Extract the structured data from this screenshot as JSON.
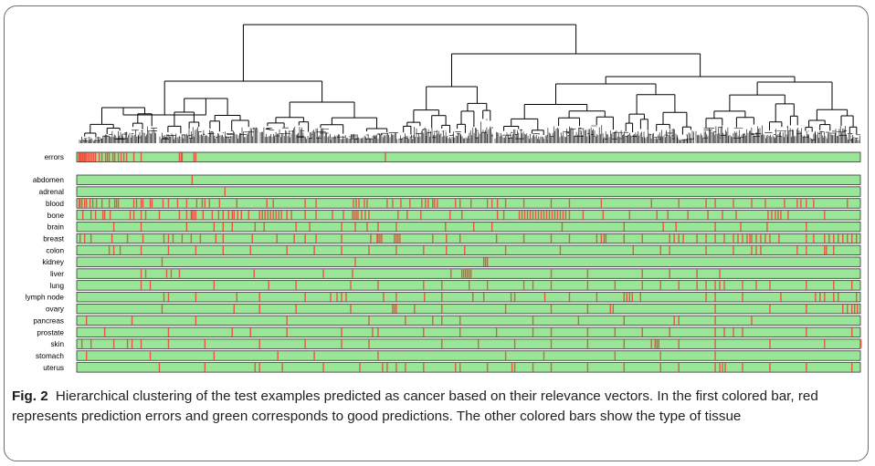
{
  "figure": {
    "rows": [
      {
        "id": "errors",
        "label": "errors",
        "marks": [
          1.5,
          2.5,
          3.5,
          4.5,
          6,
          7.5,
          8.5,
          10,
          12,
          14,
          16,
          18,
          20,
          24,
          27,
          31,
          33,
          35,
          39,
          41,
          45,
          48,
          51,
          54,
          62,
          70,
          112,
          114,
          115,
          128,
          130,
          338
        ]
      },
      {
        "id": "abdomen",
        "label": "abdomen",
        "marks": [
          126
        ]
      },
      {
        "id": "adrenal",
        "label": "adrenal",
        "marks": [
          162
        ]
      },
      {
        "id": "blood",
        "label": "blood",
        "marks": [
          2,
          3,
          5,
          8,
          10,
          14,
          17,
          21,
          27,
          35,
          41,
          43,
          45,
          62,
          65,
          70,
          72,
          80,
          82,
          94,
          100,
          110,
          120,
          131,
          137,
          140,
          145,
          156,
          175,
          208,
          215,
          250,
          262,
          303,
          306,
          309,
          315,
          318,
          340,
          346,
          355,
          365,
          378,
          382,
          385,
          390,
          392,
          395,
          415,
          420,
          432,
          450,
          455,
          461,
          470,
          490,
          520,
          540,
          575,
          630,
          660,
          690,
          700,
          720,
          740,
          755,
          776,
          790,
          794,
          800,
          808,
          845
        ]
      },
      {
        "id": "bone",
        "label": "bone",
        "marks": [
          6,
          15,
          20,
          28,
          30,
          36,
          58,
          62,
          70,
          75,
          90,
          112,
          120,
          125,
          126,
          128,
          130,
          138,
          148,
          155,
          160,
          166,
          170,
          172,
          176,
          180,
          188,
          200,
          203,
          206,
          209,
          212,
          215,
          218,
          221,
          224,
          230,
          235,
          250,
          262,
          280,
          292,
          302,
          304,
          306,
          308,
          312,
          316,
          320,
          352,
          362,
          377,
          409,
          422,
          461,
          468,
          485,
          488,
          491,
          494,
          497,
          500,
          503,
          506,
          509,
          512,
          515,
          518,
          521,
          524,
          527,
          530,
          533,
          536,
          540,
          555,
          577,
          606,
          636,
          648,
          670,
          692,
          708,
          723,
          758,
          762,
          766,
          769,
          772,
          780,
          820
        ]
      },
      {
        "id": "brain",
        "label": "brain",
        "marks": [
          40,
          70,
          120,
          150,
          160,
          170,
          195,
          205,
          240,
          255,
          290,
          305,
          318,
          330,
          350,
          404,
          435,
          455,
          532,
          600,
          643,
          657,
          700,
          728,
          757,
          800
        ]
      },
      {
        "id": "breast",
        "label": "breast",
        "marks": [
          3,
          8,
          15,
          38,
          55,
          72,
          95,
          100,
          105,
          115,
          125,
          135,
          152,
          160,
          192,
          219,
          238,
          250,
          262,
          290,
          322,
          329,
          330,
          332,
          334,
          348,
          350,
          352,
          354,
          390,
          405,
          420,
          460,
          490,
          520,
          540,
          570,
          575,
          578,
          580,
          600,
          620,
          650,
          655,
          660,
          665,
          680,
          690,
          700,
          710,
          720,
          725,
          730,
          735,
          738,
          740,
          745,
          750,
          755,
          760,
          770,
          800,
          808,
          820,
          825,
          830,
          835,
          840,
          845,
          850,
          855
        ]
      },
      {
        "id": "colon",
        "label": "colon",
        "marks": [
          35,
          40,
          47,
          70,
          100,
          130,
          160,
          190,
          230,
          260,
          290,
          320,
          350,
          380,
          405,
          425,
          470,
          530,
          610,
          640,
          650,
          690,
          720,
          740,
          745,
          750,
          790,
          800,
          820,
          822,
          830
        ]
      },
      {
        "id": "kidney",
        "label": "kidney",
        "marks": [
          93,
          305,
          446,
          448,
          450
        ]
      },
      {
        "id": "liver",
        "label": "liver",
        "marks": [
          70,
          75,
          98,
          103,
          112,
          194,
          270,
          302,
          410,
          422,
          424,
          426,
          428,
          430,
          432,
          520,
          560,
          620,
          650,
          680,
          705
        ]
      },
      {
        "id": "lung",
        "label": "lung",
        "marks": [
          70,
          80,
          150,
          210,
          240,
          300,
          330,
          380,
          400,
          430,
          450,
          490,
          500,
          520,
          560,
          590,
          620,
          640,
          660,
          680,
          690,
          700,
          705,
          710,
          730,
          745,
          760,
          800,
          830,
          850
        ]
      },
      {
        "id": "lymph node",
        "label": "lymph node",
        "marks": [
          95,
          100,
          130,
          175,
          200,
          250,
          278,
          285,
          290,
          295,
          336,
          350,
          381,
          400,
          434,
          446,
          476,
          480,
          513,
          540,
          570,
          600,
          603,
          606,
          609,
          618,
          690,
          700,
          730,
          772,
          810,
          815,
          820,
          830,
          835,
          855
        ]
      },
      {
        "id": "ovary",
        "label": "ovary",
        "marks": [
          93,
          172,
          200,
          240,
          300,
          346,
          348,
          350,
          370,
          400,
          470,
          520,
          560,
          585,
          588,
          700,
          760,
          800,
          840,
          845,
          850,
          853,
          856
        ]
      },
      {
        "id": "pancreas",
        "label": "pancreas",
        "marks": [
          10,
          60,
          130,
          230,
          320,
          360,
          390,
          400,
          420,
          500,
          550,
          600,
          655,
          660,
          700,
          740
        ]
      },
      {
        "id": "prostate",
        "label": "prostate",
        "marks": [
          30,
          100,
          170,
          190,
          230,
          290,
          324,
          330,
          380,
          420,
          460,
          500,
          520,
          560,
          590,
          620,
          650,
          700,
          710,
          720,
          730,
          800,
          850
        ]
      },
      {
        "id": "skin",
        "label": "skin",
        "marks": [
          5,
          15,
          40,
          55,
          60,
          70,
          100,
          140,
          200,
          250,
          290,
          320,
          400,
          440,
          480,
          520,
          560,
          600,
          630,
          634,
          636,
          638,
          660,
          700,
          760,
          820,
          860
        ]
      },
      {
        "id": "stomach",
        "label": "stomach",
        "marks": [
          10,
          80,
          150,
          220,
          260,
          330,
          470,
          512,
          590,
          640,
          700
        ]
      },
      {
        "id": "uterus",
        "label": "uterus",
        "marks": [
          90,
          140,
          195,
          200,
          225,
          270,
          310,
          335,
          340,
          350,
          360,
          380,
          415,
          420,
          450,
          477,
          480,
          500,
          520,
          560,
          600,
          640,
          660,
          700,
          705,
          708,
          711,
          730,
          760,
          800,
          850
        ]
      }
    ]
  },
  "caption": {
    "label": "Fig. 2",
    "text": "Hierarchical clustering of the test examples predicted as cancer based on their relevance vectors. In the first colored bar, red represents prediction errors and green corresponds to good predictions. The other colored bars show the type of tissue"
  },
  "colors": {
    "good": "#99e699",
    "error": "#e8573f",
    "border": "#333333",
    "dendrogram": "#000000"
  }
}
